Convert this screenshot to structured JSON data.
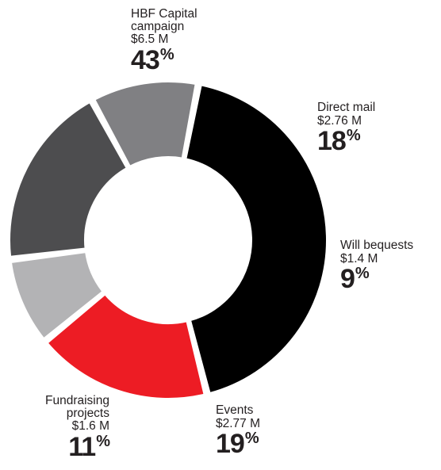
{
  "chart_data": {
    "type": "pie",
    "style": "donut",
    "slices": [
      {
        "name": "HBF Capital campaign",
        "name_lines": [
          "HBF Capital",
          "campaign"
        ],
        "amount": "$6.5 M",
        "percent": 43,
        "color": "#000000"
      },
      {
        "name": "Direct mail",
        "name_lines": [
          "Direct mail"
        ],
        "amount": "$2.76 M",
        "percent": 18,
        "color": "#ed1c24"
      },
      {
        "name": "Will bequests",
        "name_lines": [
          "Will bequests"
        ],
        "amount": "$1.4 M",
        "percent": 9,
        "color": "#b3b3b5"
      },
      {
        "name": "Events",
        "name_lines": [
          "Events"
        ],
        "amount": "$2.77 M",
        "percent": 19,
        "color": "#4d4d4f"
      },
      {
        "name": "Fundraising projects",
        "name_lines": [
          "Fundraising",
          "projects"
        ],
        "amount": "$1.6 M",
        "percent": 11,
        "color": "#808083"
      }
    ],
    "percent_symbol": "%"
  }
}
